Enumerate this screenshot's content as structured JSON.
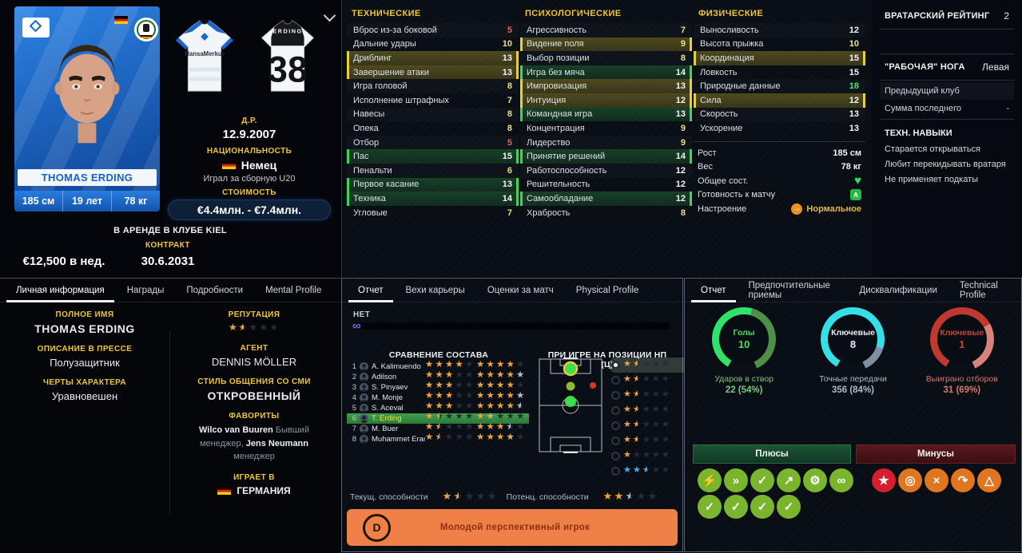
{
  "player": {
    "name": "THOMAS ERDING",
    "height": "185 см",
    "age": "19 лет",
    "weight": "78 кг",
    "dob_label": "Д.Р.",
    "dob": "12.9.2007",
    "nationality_label": "НАЦИОНАЛЬНОСТЬ",
    "nationality": "Немец",
    "national_team": "Играл за сборную U20",
    "value_label": "СТОИМОСТЬ",
    "value": "€4.4млн. - €7.4млн.",
    "loan_status": "В АРЕНДЕ В КЛУБЕ KIEL",
    "contract_label": "КОНТРАКТ",
    "wage": "€12,500 в нед.",
    "contract_end": "30.6.2031",
    "kit_sponsor": "HansaMerkur",
    "kit_back_name": "ERDING",
    "kit_number": "38"
  },
  "attributes": {
    "technical": {
      "title": "ТЕХНИЧЕСКИЕ",
      "rows": [
        {
          "n": "Вброс из-за боковой",
          "v": 5
        },
        {
          "n": "Дальние удары",
          "v": 10
        },
        {
          "n": "Дриблинг",
          "v": 13,
          "h": "yellow"
        },
        {
          "n": "Завершение атаки",
          "v": 13,
          "h": "yellow"
        },
        {
          "n": "Игра головой",
          "v": 8
        },
        {
          "n": "Исполнение штрафных",
          "v": 7
        },
        {
          "n": "Навесы",
          "v": 8
        },
        {
          "n": "Опека",
          "v": 8
        },
        {
          "n": "Отбор",
          "v": 5
        },
        {
          "n": "Пас",
          "v": 15,
          "h": "green"
        },
        {
          "n": "Пенальти",
          "v": 6
        },
        {
          "n": "Первое касание",
          "v": 13,
          "h": "green"
        },
        {
          "n": "Техника",
          "v": 14,
          "h": "green"
        },
        {
          "n": "Угловые",
          "v": 7
        }
      ]
    },
    "psychological": {
      "title": "ПСИХОЛОГИЧЕСКИЕ",
      "rows": [
        {
          "n": "Агрессивность",
          "v": 7
        },
        {
          "n": "Видение поля",
          "v": 9,
          "h": "yellow"
        },
        {
          "n": "Выбор позиции",
          "v": 8
        },
        {
          "n": "Игра без мяча",
          "v": 14,
          "h": "green"
        },
        {
          "n": "Импровизация",
          "v": 13,
          "h": "yellow"
        },
        {
          "n": "Интуиция",
          "v": 12,
          "h": "yellow"
        },
        {
          "n": "Командная игра",
          "v": 13,
          "h": "green"
        },
        {
          "n": "Концентрация",
          "v": 9
        },
        {
          "n": "Лидерство",
          "v": 9
        },
        {
          "n": "Принятие решений",
          "v": 14,
          "h": "green"
        },
        {
          "n": "Работоспособность",
          "v": 12
        },
        {
          "n": "Решительность",
          "v": 12
        },
        {
          "n": "Самообладание",
          "v": 12,
          "h": "green"
        },
        {
          "n": "Храбрость",
          "v": 8
        }
      ]
    },
    "physical": {
      "title": "ФИЗИЧЕСКИЕ",
      "rows": [
        {
          "n": "Выносливость",
          "v": 12
        },
        {
          "n": "Высота прыжка",
          "v": 10
        },
        {
          "n": "Координация",
          "v": 15,
          "h": "yellow"
        },
        {
          "n": "Ловкость",
          "v": 15
        },
        {
          "n": "Природные данные",
          "v": 18
        },
        {
          "n": "Сила",
          "v": 12,
          "h": "yellow"
        },
        {
          "n": "Скорость",
          "v": 13
        },
        {
          "n": "Ускорение",
          "v": 13
        }
      ]
    },
    "info": {
      "height_label": "Рост",
      "height": "185 см",
      "weight_label": "Вес",
      "weight": "78 кг",
      "condition_label": "Общее сост.",
      "sharpness_label": "Готовность к матчу",
      "morale_label": "Настроение",
      "morale": "Нормальное",
      "condition_icon": "heart-icon",
      "sharpness_icon": "arrow-up-icon",
      "morale_icon": "arrow-right-icon"
    }
  },
  "right_info": {
    "gk_label": "ВРАТАРСКИЙ РЕЙТИНГ",
    "gk_value": "2",
    "foot_label": "\"РАБОЧАЯ\" НОГА",
    "foot_value": "Левая",
    "prev_club_label": "Предыдущий клуб",
    "fee_label": "Сумма последнего",
    "fee_value": "-",
    "skills_title": "ТЕХН. НАВЫКИ",
    "skills": [
      "Старается открываться",
      "Любит перекидывать вратаря",
      "Не применяет подкаты"
    ]
  },
  "personal": {
    "tabs": [
      "Личная информация",
      "Награды",
      "Подробности",
      "Mental Profile"
    ],
    "active_tab": 0,
    "full_name_label": "ПОЛНОЕ ИМЯ",
    "full_name": "THOMAS ERDING",
    "press_label": "ОПИСАНИЕ В ПРЕССЕ",
    "press": "Полузащитник",
    "traits_label": "ЧЕРТЫ ХАРАКТЕРА",
    "traits": "Уравновешен",
    "reputation_label": "РЕПУТАЦИЯ",
    "reputation_stars": 1.5,
    "agent_label": "АГЕНТ",
    "agent": "DENNIS MÖLLER",
    "media_label": "СТИЛЬ ОБЩЕНИЯ СО СМИ",
    "media": "ОТКРОВЕННЫЙ",
    "fav_label": "ФАВОРИТЫ",
    "fav_people": [
      {
        "name": "Wilco van Buuren",
        "role": "Бывший менеджер,"
      },
      {
        "name": "Jens Neumann",
        "role": "менеджер"
      }
    ],
    "plays_label": "ИГРАЕТ В",
    "plays": "ГЕРМАНИЯ"
  },
  "report": {
    "tabs": [
      "Отчет",
      "Вехи карьеры",
      "Оценки за матч",
      "Physical Profile"
    ],
    "active_tab": 0,
    "knowledge": "НЕТ",
    "knowledge_icon": "binoculars-icon",
    "comparison_title": "СРАВНЕНИЕ СОСТАВА",
    "comparison": [
      {
        "rank": 1,
        "name": "A. Kalimuendo",
        "cur": 4,
        "pot": 4,
        "pot_s": 0
      },
      {
        "rank": 2,
        "name": "Adilson",
        "cur": 3,
        "pot": 4,
        "pot_s": 1
      },
      {
        "rank": 3,
        "name": "S. Pinyaev",
        "cur": 3,
        "pot": 4,
        "pot_s": 0
      },
      {
        "rank": 4,
        "name": "M. Monje",
        "cur": 3,
        "pot": 4,
        "pot_s": 1
      },
      {
        "rank": 5,
        "name": "S. Aceval",
        "cur": 3,
        "pot": 4,
        "pot_s": 0.5
      },
      {
        "rank": 6,
        "name": "T. Erding",
        "cur": 1.5,
        "pot": 1.5,
        "pot_s": 0.5,
        "selected": true
      },
      {
        "rank": 7,
        "name": "M. Buer",
        "cur": 1.5,
        "pot": 3,
        "pot_s": 0.5
      },
      {
        "rank": 8,
        "name": "Muhammet Eraml",
        "cur": 1.5,
        "pot": 3.5,
        "pot_s": 0.5
      }
    ],
    "position_title": "ПРИ ИГРЕ НА ПОЗИЦИИ НП (Ц)",
    "position_ratings": [
      {
        "stars": 1.5,
        "color": "orange",
        "selected": true
      },
      {
        "stars": 1.5,
        "color": "orange"
      },
      {
        "stars": 1.5,
        "color": "orange"
      },
      {
        "stars": 1.5,
        "color": "orange"
      },
      {
        "stars": 1.5,
        "color": "orange"
      },
      {
        "stars": 1.5,
        "color": "orange"
      },
      {
        "stars": 1,
        "color": "orange"
      },
      {
        "stars": 2.5,
        "color": "blue"
      }
    ],
    "pitch_markers": [
      {
        "x": 42,
        "y": 15,
        "r": 8,
        "color": "#3ce04a",
        "ring": true
      },
      {
        "x": 42,
        "y": 37,
        "r": 5.5,
        "color": "#8abc2c",
        "ring": false
      },
      {
        "x": 70,
        "y": 36,
        "r": 4,
        "color": "#d43a28",
        "ring": false
      },
      {
        "x": 42,
        "y": 56,
        "r": 7,
        "color": "#3ce04a",
        "ring": false
      }
    ],
    "current_label": "Текущ. способности",
    "current_stars": 1.5,
    "potential_label": "Потенц. способности",
    "potential_stars": 2,
    "potential_silver": 0.5,
    "banner_letter": "D",
    "banner_text": "Молодой перспективный игрок"
  },
  "stats": {
    "tabs": [
      "Отчет",
      "Предпочтительные приемы",
      "Дисквалификации",
      "Technical Profile"
    ],
    "active_tab": 0,
    "gauges": [
      {
        "label": "Голы",
        "value": "10",
        "sub_label": "Ударов в створ",
        "sub_value": "22 (54%)",
        "pct": 54,
        "theme": "green"
      },
      {
        "label": "Ключевые",
        "value": "8",
        "sub_label": "Точные передачи",
        "sub_value": "356 (84%)",
        "pct": 84,
        "theme": "blue"
      },
      {
        "label": "Ключевые",
        "value": "1",
        "sub_label": "Выиграно отборов",
        "sub_value": "31 (69%)",
        "pct": 69,
        "theme": "red"
      }
    ],
    "pluses_label": "Плюсы",
    "minuses_label": "Минусы",
    "plus_icons": [
      "dribbling-icon",
      "passing-icon",
      "report-check-icon",
      "growth-icon",
      "mental-icon",
      "link-icon",
      "report-check-icon",
      "report-check-icon",
      "report-check-icon",
      "report-check-icon"
    ],
    "minus_icons": [
      "star-icon",
      "target-icon",
      "broken-chain-icon",
      "curve-shot-icon",
      "flask-icon"
    ]
  },
  "colors": {
    "accent_yellow": "#f0c635",
    "attr_red": "#e3655b",
    "attr_yellow": "#eae184",
    "attr_white": "#f2f4f6",
    "attr_green": "#52e06a",
    "star_orange": "#f2a13c",
    "star_silver": "#b3bac6",
    "star_blue": "#3ab4ee",
    "banner_orange": "#ef8148",
    "plus_green": "#7ab52d",
    "minus_red": "#d41f2c",
    "minus_orange": "#e0761f"
  }
}
